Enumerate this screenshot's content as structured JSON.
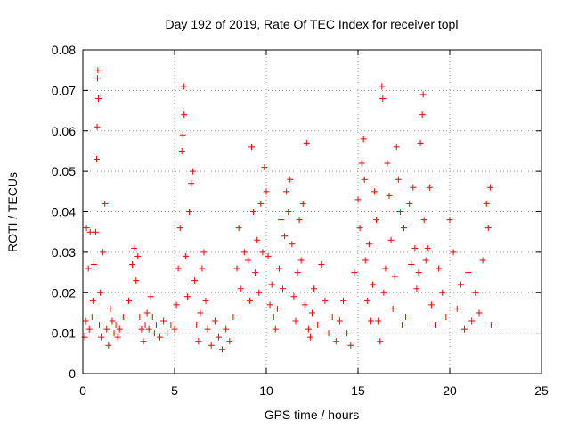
{
  "chart_data": {
    "type": "scatter",
    "title": "Day 192 of 2019, Rate Of TEC Index for receiver topl",
    "xlabel": "GPS time / hours",
    "ylabel": "ROTI / TECUs",
    "xlim": [
      0,
      25
    ],
    "ylim": [
      0,
      0.08
    ],
    "xticks": [
      0,
      5,
      10,
      15,
      20,
      25
    ],
    "yticks": [
      0,
      0.01,
      0.02,
      0.03,
      0.04,
      0.05,
      0.06,
      0.07,
      0.08
    ],
    "xtick_labels": [
      "0",
      "5",
      "10",
      "15",
      "20",
      "25"
    ],
    "ytick_labels": [
      "0",
      "0.01",
      "0.02",
      "0.03",
      "0.04",
      "0.05",
      "0.06",
      "0.07",
      "0.08"
    ],
    "grid": true,
    "marker": "+",
    "marker_color": "#ff0000",
    "series": [
      {
        "name": "ROTI",
        "points": [
          [
            0.1,
            0.009
          ],
          [
            0.15,
            0.013
          ],
          [
            0.2,
            0.036
          ],
          [
            0.3,
            0.026
          ],
          [
            0.35,
            0.011
          ],
          [
            0.4,
            0.035
          ],
          [
            0.5,
            0.014
          ],
          [
            0.55,
            0.018
          ],
          [
            0.6,
            0.027
          ],
          [
            0.7,
            0.035
          ],
          [
            0.75,
            0.053
          ],
          [
            0.78,
            0.061
          ],
          [
            0.8,
            0.073
          ],
          [
            0.82,
            0.075
          ],
          [
            0.85,
            0.068
          ],
          [
            0.9,
            0.012
          ],
          [
            0.95,
            0.02
          ],
          [
            1.0,
            0.009
          ],
          [
            1.1,
            0.03
          ],
          [
            1.2,
            0.042
          ],
          [
            1.3,
            0.011
          ],
          [
            1.4,
            0.007
          ],
          [
            1.5,
            0.016
          ],
          [
            1.6,
            0.013
          ],
          [
            1.7,
            0.01
          ],
          [
            1.8,
            0.012
          ],
          [
            1.9,
            0.009
          ],
          [
            2.0,
            0.011
          ],
          [
            2.2,
            0.014
          ],
          [
            2.5,
            0.018
          ],
          [
            2.7,
            0.027
          ],
          [
            2.8,
            0.031
          ],
          [
            2.9,
            0.023
          ],
          [
            3.0,
            0.029
          ],
          [
            3.1,
            0.014
          ],
          [
            3.2,
            0.011
          ],
          [
            3.3,
            0.008
          ],
          [
            3.4,
            0.012
          ],
          [
            3.5,
            0.015
          ],
          [
            3.6,
            0.011
          ],
          [
            3.7,
            0.019
          ],
          [
            3.8,
            0.014
          ],
          [
            3.9,
            0.01
          ],
          [
            4.0,
            0.012
          ],
          [
            4.2,
            0.009
          ],
          [
            4.4,
            0.013
          ],
          [
            4.6,
            0.01
          ],
          [
            4.8,
            0.012
          ],
          [
            5.0,
            0.011
          ],
          [
            5.1,
            0.017
          ],
          [
            5.2,
            0.026
          ],
          [
            5.3,
            0.036
          ],
          [
            5.4,
            0.055
          ],
          [
            5.45,
            0.059
          ],
          [
            5.5,
            0.071
          ],
          [
            5.52,
            0.064
          ],
          [
            5.6,
            0.029
          ],
          [
            5.7,
            0.019
          ],
          [
            5.8,
            0.04
          ],
          [
            5.9,
            0.047
          ],
          [
            6.0,
            0.05
          ],
          [
            6.1,
            0.023
          ],
          [
            6.2,
            0.012
          ],
          [
            6.3,
            0.008
          ],
          [
            6.4,
            0.015
          ],
          [
            6.5,
            0.026
          ],
          [
            6.6,
            0.03
          ],
          [
            6.7,
            0.018
          ],
          [
            6.8,
            0.011
          ],
          [
            7.0,
            0.007
          ],
          [
            7.2,
            0.013
          ],
          [
            7.4,
            0.009
          ],
          [
            7.6,
            0.006
          ],
          [
            7.8,
            0.011
          ],
          [
            8.0,
            0.008
          ],
          [
            8.2,
            0.014
          ],
          [
            8.4,
            0.026
          ],
          [
            8.5,
            0.036
          ],
          [
            8.6,
            0.021
          ],
          [
            8.8,
            0.03
          ],
          [
            9.0,
            0.028
          ],
          [
            9.1,
            0.018
          ],
          [
            9.2,
            0.056
          ],
          [
            9.3,
            0.04
          ],
          [
            9.4,
            0.025
          ],
          [
            9.5,
            0.033
          ],
          [
            9.6,
            0.02
          ],
          [
            9.7,
            0.042
          ],
          [
            9.8,
            0.03
          ],
          [
            9.9,
            0.051
          ],
          [
            10.0,
            0.045
          ],
          [
            10.1,
            0.029
          ],
          [
            10.2,
            0.017
          ],
          [
            10.3,
            0.022
          ],
          [
            10.4,
            0.014
          ],
          [
            10.5,
            0.011
          ],
          [
            10.6,
            0.016
          ],
          [
            10.7,
            0.026
          ],
          [
            10.8,
            0.038
          ],
          [
            10.9,
            0.021
          ],
          [
            11.0,
            0.034
          ],
          [
            11.1,
            0.045
          ],
          [
            11.2,
            0.04
          ],
          [
            11.3,
            0.048
          ],
          [
            11.4,
            0.032
          ],
          [
            11.5,
            0.019
          ],
          [
            11.6,
            0.013
          ],
          [
            11.7,
            0.025
          ],
          [
            11.8,
            0.038
          ],
          [
            11.9,
            0.028
          ],
          [
            12.0,
            0.042
          ],
          [
            12.1,
            0.017
          ],
          [
            12.2,
            0.057
          ],
          [
            12.3,
            0.011
          ],
          [
            12.4,
            0.009
          ],
          [
            12.5,
            0.015
          ],
          [
            12.6,
            0.021
          ],
          [
            12.8,
            0.012
          ],
          [
            13.0,
            0.027
          ],
          [
            13.2,
            0.018
          ],
          [
            13.4,
            0.01
          ],
          [
            13.6,
            0.014
          ],
          [
            13.8,
            0.008
          ],
          [
            14.0,
            0.013
          ],
          [
            14.2,
            0.018
          ],
          [
            14.4,
            0.01
          ],
          [
            14.6,
            0.007
          ],
          [
            14.8,
            0.025
          ],
          [
            15.0,
            0.043
          ],
          [
            15.1,
            0.036
          ],
          [
            15.2,
            0.052
          ],
          [
            15.3,
            0.058
          ],
          [
            15.35,
            0.048
          ],
          [
            15.4,
            0.028
          ],
          [
            15.5,
            0.018
          ],
          [
            15.6,
            0.032
          ],
          [
            15.7,
            0.013
          ],
          [
            15.8,
            0.022
          ],
          [
            15.9,
            0.045
          ],
          [
            16.0,
            0.038
          ],
          [
            16.1,
            0.013
          ],
          [
            16.2,
            0.008
          ],
          [
            16.3,
            0.071
          ],
          [
            16.35,
            0.068
          ],
          [
            16.4,
            0.02
          ],
          [
            16.5,
            0.026
          ],
          [
            16.6,
            0.052
          ],
          [
            16.7,
            0.044
          ],
          [
            16.8,
            0.033
          ],
          [
            16.9,
            0.016
          ],
          [
            17.0,
            0.024
          ],
          [
            17.1,
            0.056
          ],
          [
            17.2,
            0.048
          ],
          [
            17.3,
            0.04
          ],
          [
            17.4,
            0.012
          ],
          [
            17.5,
            0.036
          ],
          [
            17.6,
            0.014
          ],
          [
            17.8,
            0.042
          ],
          [
            17.9,
            0.027
          ],
          [
            18.0,
            0.046
          ],
          [
            18.1,
            0.031
          ],
          [
            18.2,
            0.021
          ],
          [
            18.3,
            0.025
          ],
          [
            18.4,
            0.057
          ],
          [
            18.5,
            0.064
          ],
          [
            18.55,
            0.069
          ],
          [
            18.6,
            0.038
          ],
          [
            18.7,
            0.028
          ],
          [
            18.8,
            0.031
          ],
          [
            18.9,
            0.046
          ],
          [
            19.0,
            0.017
          ],
          [
            19.2,
            0.012
          ],
          [
            19.4,
            0.026
          ],
          [
            19.6,
            0.02
          ],
          [
            19.8,
            0.014
          ],
          [
            20.0,
            0.038
          ],
          [
            20.2,
            0.03
          ],
          [
            20.4,
            0.016
          ],
          [
            20.6,
            0.022
          ],
          [
            20.8,
            0.011
          ],
          [
            21.0,
            0.025
          ],
          [
            21.2,
            0.013
          ],
          [
            21.4,
            0.02
          ],
          [
            21.6,
            0.015
          ],
          [
            21.8,
            0.028
          ],
          [
            22.0,
            0.042
          ],
          [
            22.1,
            0.036
          ],
          [
            22.2,
            0.046
          ],
          [
            22.25,
            0.012
          ]
        ]
      }
    ]
  }
}
